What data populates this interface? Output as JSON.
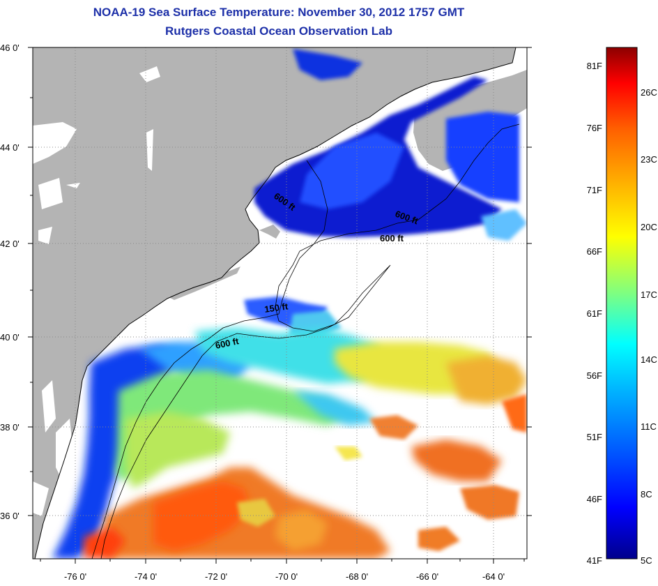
{
  "title": "NOAA-19 Sea Surface Temperature:  November 30, 2012 1757 GMT",
  "subtitle": "Rutgers Coastal Ocean Observation Lab",
  "map": {
    "lon_ticks": [
      "-76 0'",
      "-74 0'",
      "-72 0'",
      "-70 0'",
      "-68 0'",
      "-66 0'",
      "-64 0'"
    ],
    "lat_ticks": [
      "46 0'",
      "44 0'",
      "42 0'",
      "40 0'",
      "38 0'",
      "36 0'"
    ],
    "lon_range": [
      -77,
      -63
    ],
    "lat_range": [
      35,
      46
    ],
    "contour_labels": [
      "600 ft",
      "600 ft",
      "600 ft",
      "150 ft",
      "600 ft"
    ],
    "colors": {
      "land": "#b4b4b4",
      "cloud": "#ffffff",
      "grid": "#888888",
      "coast": "#000000"
    }
  },
  "colorbar": {
    "fahrenheit_labels": [
      "81F",
      "76F",
      "71F",
      "66F",
      "61F",
      "56F",
      "51F",
      "46F",
      "41F"
    ],
    "celsius_labels": [
      "26C",
      "23C",
      "20C",
      "17C",
      "14C",
      "11C",
      "8C",
      "5C"
    ],
    "range_c": [
      5,
      27.2
    ],
    "colors": [
      "#00008c",
      "#0000ff",
      "#0060ff",
      "#00b4ff",
      "#00ffff",
      "#7fff80",
      "#ffff00",
      "#ffb400",
      "#ff6000",
      "#ff0000",
      "#8c0000"
    ]
  }
}
